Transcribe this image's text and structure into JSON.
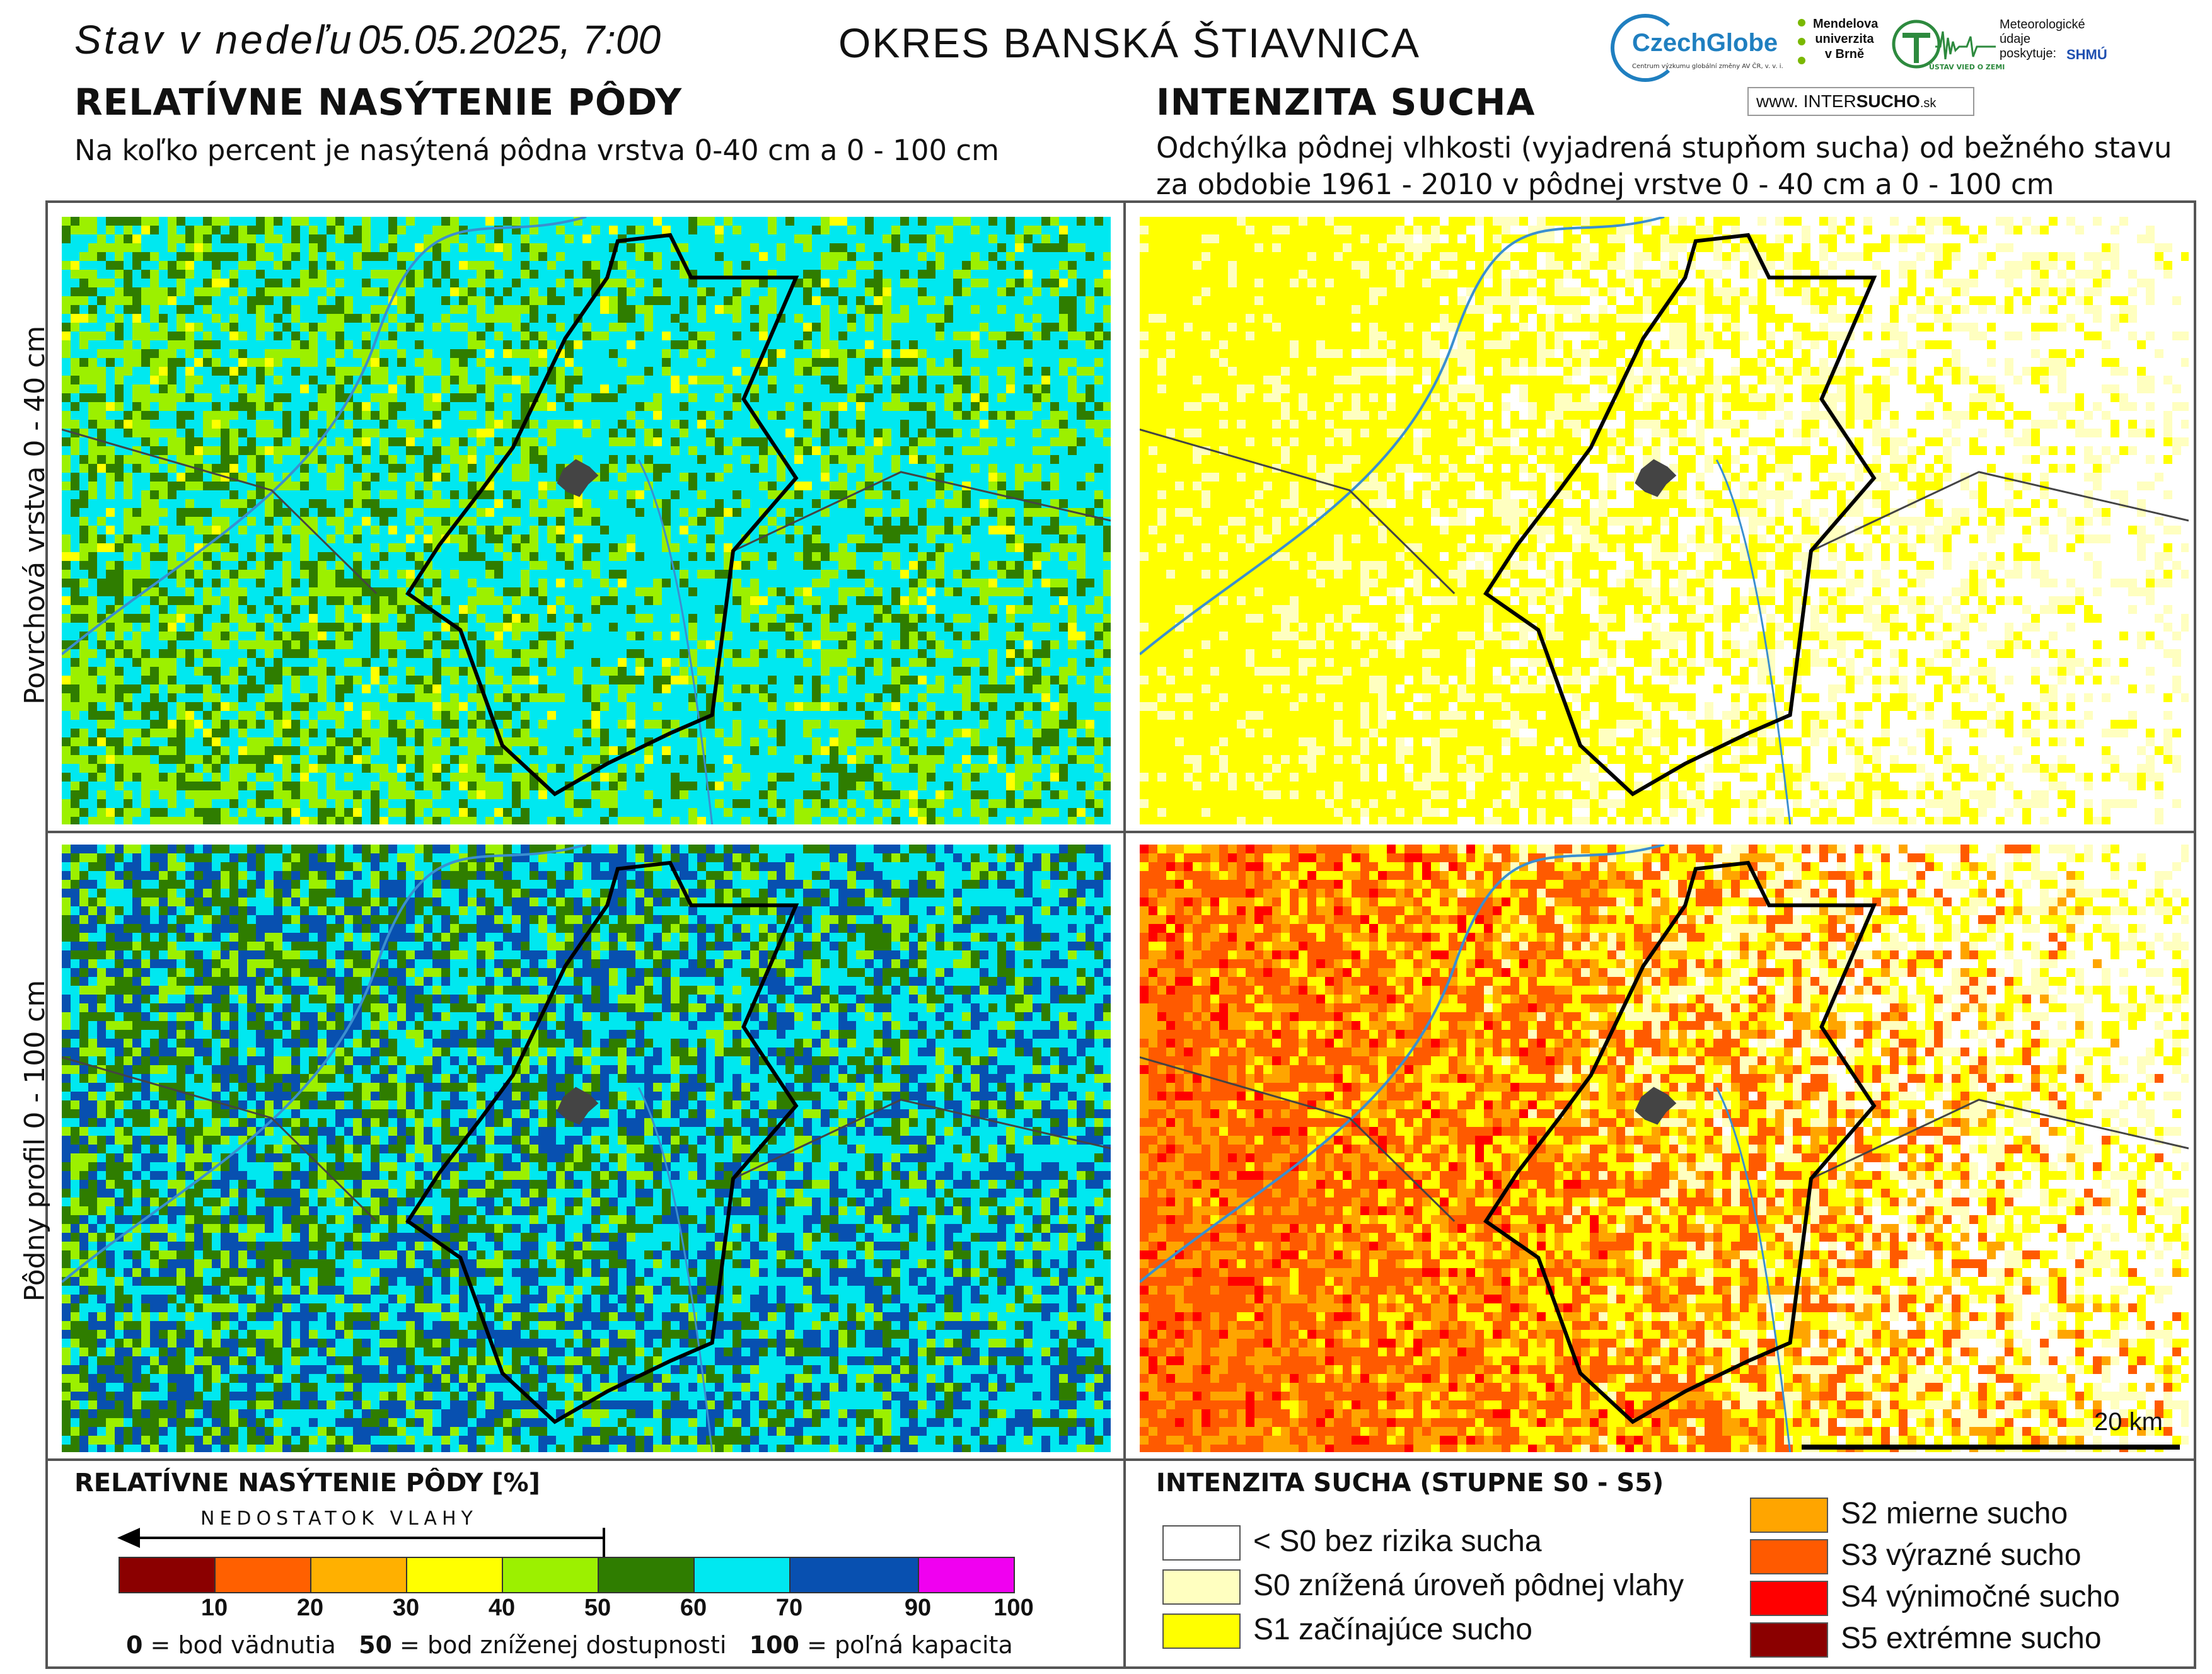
{
  "header": {
    "date_day": "Stav v nedeľu",
    "date_time": "05.05.2025, 7:00",
    "district": "OKRES  BANSKÁ ŠTIAVNICA"
  },
  "left_panel": {
    "title": "RELATÍVNE NASÝTENIE PÔDY",
    "subtitle": "Na koľko percent je nasýtená pôdna vrstva 0-40 cm a 0 - 100 cm"
  },
  "right_panel": {
    "title": "INTENZITA SUCHA",
    "subtitle_line1": "Odchýlka pôdnej vlhkosti (vyjadrená stupňom sucha) od bežného stavu",
    "subtitle_line2": "za obdobie 1961 - 2010 v pôdnej vrstve 0 - 40 cm a 0 - 100 cm"
  },
  "logos": {
    "czechglobe": "CzechGlobe",
    "czechglobe_sub": "Centrum výzkumu globální změny AV ČR, v. v. i.",
    "mendel": "Mendelova univerzita v Brně",
    "ustav": "ÚSTAV VIED O ZEMI",
    "meteo": "Meteorologické údaje poskytuje:",
    "shmu": "SHMÚ",
    "intersucho_prefix": "www.",
    "intersucho_a": "INTER",
    "intersucho_b": "SUCHO",
    "intersucho_suffix": ".sk"
  },
  "rows": {
    "top": "Povrchová vrstva 0 - 40 cm",
    "bottom": "Pôdny profil 0 - 100 cm"
  },
  "scale_bar": "20 km",
  "legend_saturation": {
    "title": "RELATÍVNE NASÝTENIE PÔDY [%]",
    "arrow_label": "NEDOSTATOK VLAHY",
    "ticks": [
      "10",
      "20",
      "30",
      "40",
      "50",
      "60",
      "70",
      "90",
      "100"
    ],
    "colors": [
      "#8b0000",
      "#ff6000",
      "#ffb000",
      "#ffff00",
      "#9cf000",
      "#2f7d00",
      "#00e8f0",
      "#0850b0",
      "#f000f0"
    ],
    "note_0": "0",
    "note_0_text": " = bod vädnutia",
    "note_50": "50",
    "note_50_text": " = bod zníženej dostupnosti",
    "note_100": "100",
    "note_100_text": " = poľná kapacita"
  },
  "legend_drought": {
    "title": "INTENZITA SUCHA (STUPNE S0 - S5)",
    "classes_left": [
      {
        "label": "< S0 bez rizika sucha",
        "color": "#ffffff"
      },
      {
        "label": "S0 znížená úroveň pôdnej vlahy",
        "color": "#ffffc0"
      },
      {
        "label": "S1 začínajúce sucho",
        "color": "#ffff00"
      }
    ],
    "classes_right": [
      {
        "label": "S2 mierne sucho",
        "color": "#ffa500"
      },
      {
        "label": "S3 výrazné sucho",
        "color": "#ff5a00"
      },
      {
        "label": "S4 výnimočné sucho",
        "color": "#ff0000"
      },
      {
        "label": "S5 extrémne sucho",
        "color": "#8b0000"
      }
    ]
  }
}
